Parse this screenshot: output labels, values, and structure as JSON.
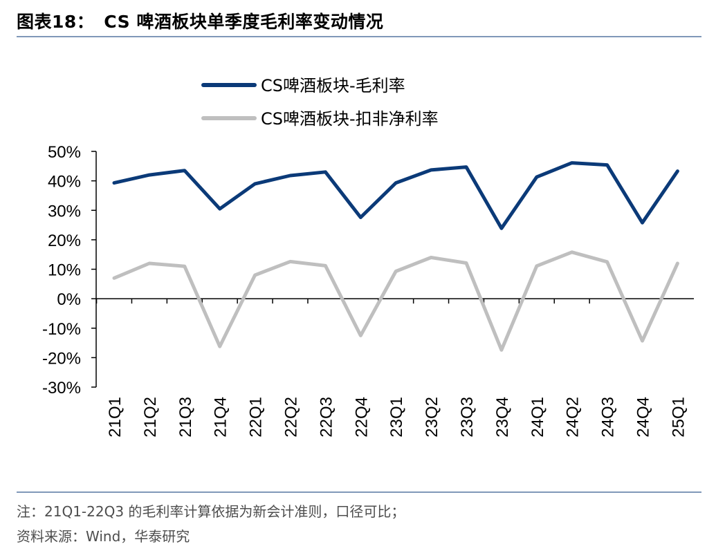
{
  "header": {
    "figure_label": "图表18：",
    "title": "CS 啤酒板块单季度毛利率变动情况"
  },
  "chart_data": {
    "type": "line",
    "x": [
      "21Q1",
      "21Q2",
      "21Q3",
      "21Q4",
      "22Q1",
      "22Q2",
      "22Q3",
      "22Q4",
      "23Q1",
      "23Q2",
      "23Q3",
      "23Q4",
      "24Q1",
      "24Q2",
      "24Q3",
      "24Q4",
      "25Q1"
    ],
    "series": [
      {
        "name": "CS啤酒板块-毛利率",
        "color": "#0b3a78",
        "values": [
          39.3,
          42.0,
          43.5,
          30.5,
          39.0,
          41.8,
          43.0,
          27.6,
          39.3,
          43.7,
          44.7,
          23.9,
          41.3,
          46.1,
          45.4,
          25.8,
          43.3
        ]
      },
      {
        "name": "CS啤酒板块-扣非净利率",
        "color": "#bfbfbf",
        "values": [
          7.0,
          12.0,
          11.0,
          -16.2,
          8.0,
          12.6,
          11.2,
          -12.5,
          9.3,
          14.0,
          12.1,
          -17.4,
          11.1,
          15.8,
          12.5,
          -14.3,
          12.0
        ]
      }
    ],
    "yticks": [
      "50%",
      "40%",
      "30%",
      "20%",
      "10%",
      "0%",
      "-10%",
      "-20%",
      "-30%"
    ],
    "ylim": [
      -30,
      50
    ],
    "legend_position": "top",
    "grid": false
  },
  "footer": {
    "note": "注：21Q1-22Q3 的毛利率计算依据为新会计准则，口径可比；",
    "source": "资料来源：Wind，华泰研究"
  }
}
